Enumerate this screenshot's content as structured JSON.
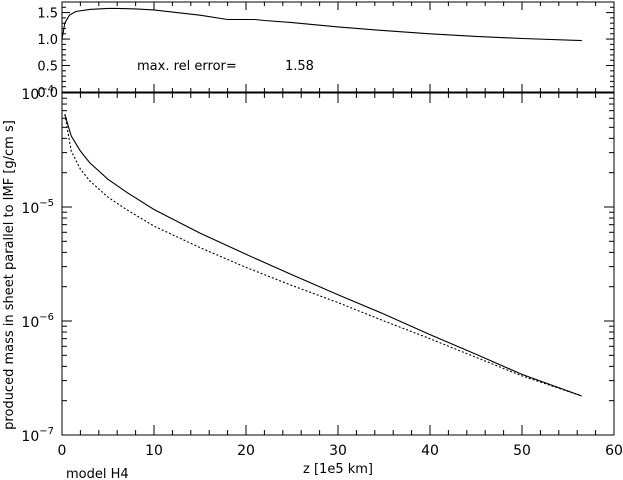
{
  "chart_data": [
    {
      "type": "line",
      "panel": "top",
      "ylim": [
        0,
        1.7
      ],
      "xlim": [
        0,
        60
      ],
      "yticks": [
        "0.0",
        "0.5",
        "1.0",
        "1.5"
      ],
      "annotation_label": "max. rel error=",
      "annotation_value": "1.58",
      "series": [
        {
          "style": "solid",
          "x": [
            0,
            0.3,
            0.8,
            1.5,
            3,
            5,
            6,
            8,
            10,
            12,
            15,
            18,
            19,
            21,
            22,
            25,
            30,
            35,
            40,
            45,
            50,
            56.5
          ],
          "y": [
            1.0,
            1.3,
            1.45,
            1.52,
            1.56,
            1.58,
            1.58,
            1.57,
            1.55,
            1.51,
            1.45,
            1.37,
            1.37,
            1.37,
            1.35,
            1.31,
            1.23,
            1.16,
            1.1,
            1.05,
            1.01,
            0.97
          ]
        }
      ]
    },
    {
      "type": "line",
      "panel": "bottom",
      "yscale": "log",
      "ylim": [
        1e-07,
        0.0001
      ],
      "xlim": [
        0,
        60
      ],
      "xticks": [
        "0",
        "10",
        "20",
        "30",
        "40",
        "50",
        "60"
      ],
      "ytick_labels": [
        {
          "base": "10",
          "exp": "−7"
        },
        {
          "base": "10",
          "exp": "−6"
        },
        {
          "base": "10",
          "exp": "−5"
        },
        {
          "base": "10",
          "exp": "−4"
        }
      ],
      "xlabel": "z [1e5 km]",
      "ylabel": "produced mass  in sheet parallel to IMF [g/cm s]",
      "footer": "model H4",
      "series": [
        {
          "style": "solid",
          "x": [
            0.3,
            1,
            2,
            3,
            5,
            7,
            10,
            15,
            20,
            25,
            30,
            35,
            40,
            45,
            50,
            56.5
          ],
          "y": [
            6.5e-05,
            4.2e-05,
            3.1e-05,
            2.45e-05,
            1.75e-05,
            1.35e-05,
            9.5e-06,
            5.9e-06,
            3.85e-06,
            2.55e-06,
            1.7e-06,
            1.15e-06,
            7.6e-07,
            5.1e-07,
            3.4e-07,
            2.2e-07
          ]
        },
        {
          "style": "dotted",
          "x": [
            0.3,
            1,
            2,
            3,
            5,
            7,
            10,
            15,
            20,
            25,
            30,
            35,
            40,
            45,
            50,
            56.5
          ],
          "y": [
            6.5e-05,
            3.1e-05,
            2.15e-05,
            1.7e-05,
            1.22e-05,
            9.5e-06,
            6.8e-06,
            4.4e-06,
            2.95e-06,
            2.05e-06,
            1.45e-06,
            1e-06,
            7e-07,
            4.8e-07,
            3.3e-07,
            2.2e-07
          ]
        }
      ]
    }
  ]
}
